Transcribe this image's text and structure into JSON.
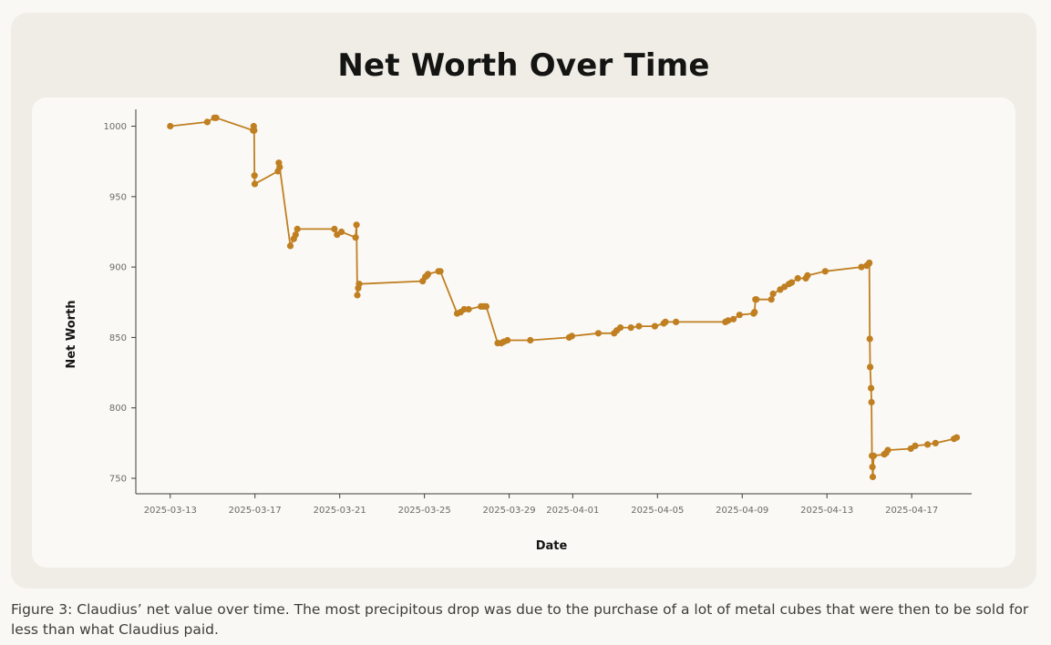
{
  "caption": "Figure 3: Claudius’ net value over time. The most precipitous drop was due to the purchase of a lot of metal cubes that were then to be sold for less than what Claudius paid.",
  "colors": {
    "line": "#c07f21",
    "axis": "#3d3d3a",
    "tick_text": "#6b6a66"
  },
  "chart_data": {
    "type": "line",
    "title": "Net Worth Over Time",
    "xlabel": "Date",
    "ylabel": "Net Worth",
    "x_ticks": [
      "2025-03-13",
      "2025-03-17",
      "2025-03-21",
      "2025-03-25",
      "2025-03-29",
      "2025-04-01",
      "2025-04-05",
      "2025-04-09",
      "2025-04-13",
      "2025-04-17"
    ],
    "y_ticks": [
      750,
      800,
      850,
      900,
      950,
      1000
    ],
    "xlim": [
      "2025-03-11 09:00",
      "2025-04-19 20:00"
    ],
    "ylim": [
      739,
      1012
    ],
    "grid": false,
    "markers": true,
    "series": [
      {
        "x": [
          "2025-03-13 00:00",
          "2025-03-14 18:00",
          "2025-03-15 02:00",
          "2025-03-15 04:00",
          "2025-03-16 22:00",
          "2025-03-16 22:30",
          "2025-03-16 23:00",
          "2025-03-16 23:30",
          "2025-03-16 23:45",
          "2025-03-18 02:00",
          "2025-03-18 03:00",
          "2025-03-18 04:00",
          "2025-03-18 16:00",
          "2025-03-18 20:00",
          "2025-03-18 22:00",
          "2025-03-19 00:00",
          "2025-03-20 18:00",
          "2025-03-20 21:00",
          "2025-03-21 02:00",
          "2025-03-21 18:00",
          "2025-03-21 19:00",
          "2025-03-21 20:00",
          "2025-03-21 21:00",
          "2025-03-21 22:00",
          "2025-03-24 22:00",
          "2025-03-25 01:00",
          "2025-03-25 03:00",
          "2025-03-25 04:00",
          "2025-03-25 16:00",
          "2025-03-25 18:00",
          "2025-03-26 13:00",
          "2025-03-26 17:00",
          "2025-03-26 21:00",
          "2025-03-27 02:00",
          "2025-03-27 16:00",
          "2025-03-27 19:00",
          "2025-03-27 22:00",
          "2025-03-28 11:00",
          "2025-03-28 15:00",
          "2025-03-28 18:00",
          "2025-03-28 22:00",
          "2025-03-30 00:00",
          "2025-03-31 20:00",
          "2025-03-31 23:00",
          "2025-04-02 05:00",
          "2025-04-02 23:00",
          "2025-04-03 02:00",
          "2025-04-03 06:00",
          "2025-04-03 18:00",
          "2025-04-04 03:00",
          "2025-04-04 21:00",
          "2025-04-05 07:00",
          "2025-04-05 09:00",
          "2025-04-05 21:00",
          "2025-04-08 05:00",
          "2025-04-08 08:00",
          "2025-04-08 14:00",
          "2025-04-08 21:00",
          "2025-04-09 13:00",
          "2025-04-09 14:00",
          "2025-04-09 15:00",
          "2025-04-09 16:00",
          "2025-04-10 09:00",
          "2025-04-10 11:00",
          "2025-04-10 19:00",
          "2025-04-11 00:00",
          "2025-04-11 05:00",
          "2025-04-11 08:00",
          "2025-04-11 15:00",
          "2025-04-12 00:00",
          "2025-04-12 02:00",
          "2025-04-12 22:00",
          "2025-04-14 15:00",
          "2025-04-14 21:00",
          "2025-04-14 23:00",
          "2025-04-15 00:00",
          "2025-04-15 00:30",
          "2025-04-15 01:00",
          "2025-04-15 02:00",
          "2025-04-15 02:30",
          "2025-04-15 03:00",
          "2025-04-15 03:30",
          "2025-04-15 04:00",
          "2025-04-15 05:00",
          "2025-04-15 17:00",
          "2025-04-15 19:00",
          "2025-04-15 21:00",
          "2025-04-16 23:00",
          "2025-04-17 04:00",
          "2025-04-17 18:00",
          "2025-04-18 03:00",
          "2025-04-19 00:00",
          "2025-04-19 03:00"
        ],
        "y": [
          1000,
          1003,
          1006,
          1006,
          997,
          1000,
          997,
          965,
          959,
          968,
          974,
          971,
          915,
          920,
          923,
          927,
          927,
          923,
          925,
          921,
          930,
          880,
          885,
          888,
          890,
          893,
          894,
          895,
          897,
          897,
          867,
          868,
          870,
          870,
          872,
          872,
          872,
          846,
          846,
          847,
          848,
          848,
          850,
          851,
          853,
          853,
          855,
          857,
          857,
          858,
          858,
          860,
          861,
          861,
          861,
          862,
          863,
          866,
          867,
          868,
          877,
          877,
          877,
          881,
          884,
          886,
          888,
          889,
          892,
          892,
          894,
          897,
          900,
          901,
          902,
          903,
          849,
          829,
          814,
          804,
          766,
          758,
          751,
          766,
          767,
          768,
          770,
          771,
          773,
          774,
          775,
          778,
          779
        ]
      }
    ]
  }
}
